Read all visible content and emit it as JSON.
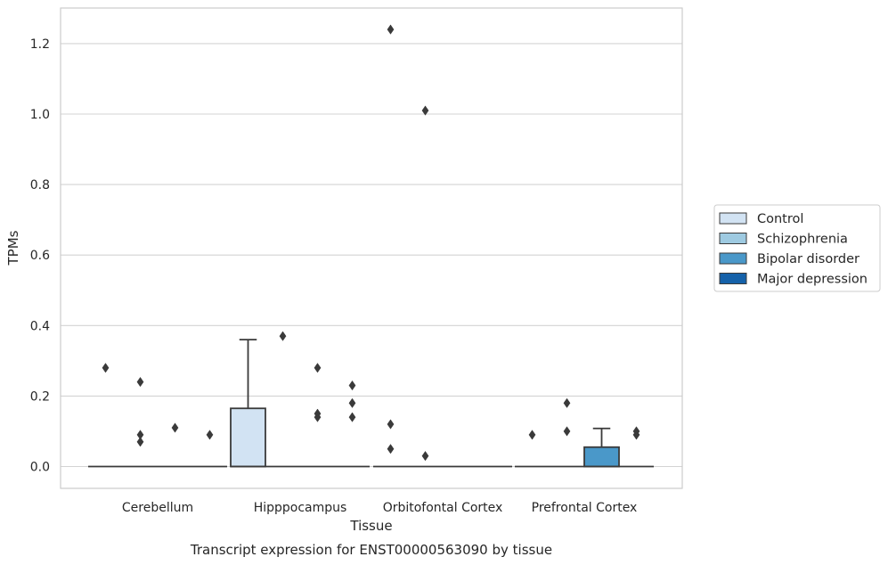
{
  "chart_data": {
    "type": "box",
    "xlabel": "Tissue",
    "ylabel": "TPMs",
    "caption": "Transcript expression for ENST00000563090 by tissue",
    "categories": [
      "Cerebellum",
      "Hipppocampus",
      "Orbitofontal Cortex",
      "Prefrontal Cortex"
    ],
    "ylim": [
      -0.06,
      1.3
    ],
    "yticks": [
      0.0,
      0.2,
      0.4,
      0.6,
      0.8,
      1.0,
      1.2
    ],
    "ytick_labels": [
      "0.0",
      "0.2",
      "0.4",
      "0.6",
      "0.8",
      "1.0",
      "1.2"
    ],
    "grid": true,
    "legend_position": "right",
    "series": [
      {
        "name": "Control",
        "color": "#d2e3f3"
      },
      {
        "name": "Schizophrenia",
        "color": "#9ecae1"
      },
      {
        "name": "Bipolar disorder",
        "color": "#4a98c9"
      },
      {
        "name": "Major depression",
        "color": "#1561a9"
      }
    ],
    "boxes": [
      {
        "category": "Cerebellum",
        "series": "Control",
        "q1": 0,
        "median": 0,
        "q3": 0,
        "whisker_low": 0,
        "whisker_high": 0,
        "outliers": [
          0.28
        ]
      },
      {
        "category": "Cerebellum",
        "series": "Schizophrenia",
        "q1": 0,
        "median": 0,
        "q3": 0,
        "whisker_low": 0,
        "whisker_high": 0,
        "outliers": [
          0.24,
          0.09,
          0.07
        ]
      },
      {
        "category": "Cerebellum",
        "series": "Bipolar disorder",
        "q1": 0,
        "median": 0,
        "q3": 0,
        "whisker_low": 0,
        "whisker_high": 0,
        "outliers": [
          0.11
        ]
      },
      {
        "category": "Cerebellum",
        "series": "Major depression",
        "q1": 0,
        "median": 0,
        "q3": 0,
        "whisker_low": 0,
        "whisker_high": 0,
        "outliers": [
          0.09
        ]
      },
      {
        "category": "Hipppocampus",
        "series": "Control",
        "q1": 0,
        "median": 0,
        "q3": 0.165,
        "whisker_low": 0,
        "whisker_high": 0.36,
        "outliers": []
      },
      {
        "category": "Hipppocampus",
        "series": "Schizophrenia",
        "q1": 0,
        "median": 0,
        "q3": 0,
        "whisker_low": 0,
        "whisker_high": 0,
        "outliers": [
          0.37
        ]
      },
      {
        "category": "Hipppocampus",
        "series": "Bipolar disorder",
        "q1": 0,
        "median": 0,
        "q3": 0,
        "whisker_low": 0,
        "whisker_high": 0,
        "outliers": [
          0.28,
          0.15,
          0.14
        ]
      },
      {
        "category": "Hipppocampus",
        "series": "Major depression",
        "q1": 0,
        "median": 0,
        "q3": 0,
        "whisker_low": 0,
        "whisker_high": 0,
        "outliers": [
          0.23,
          0.18,
          0.14
        ]
      },
      {
        "category": "Orbitofontal Cortex",
        "series": "Control",
        "q1": 0,
        "median": 0,
        "q3": 0,
        "whisker_low": 0,
        "whisker_high": 0,
        "outliers": [
          1.24,
          0.12,
          0.05
        ]
      },
      {
        "category": "Orbitofontal Cortex",
        "series": "Schizophrenia",
        "q1": 0,
        "median": 0,
        "q3": 0,
        "whisker_low": 0,
        "whisker_high": 0,
        "outliers": [
          1.01,
          0.03
        ]
      },
      {
        "category": "Orbitofontal Cortex",
        "series": "Bipolar disorder",
        "q1": 0,
        "median": 0,
        "q3": 0,
        "whisker_low": 0,
        "whisker_high": 0,
        "outliers": []
      },
      {
        "category": "Orbitofontal Cortex",
        "series": "Major depression",
        "q1": 0,
        "median": 0,
        "q3": 0,
        "whisker_low": 0,
        "whisker_high": 0,
        "outliers": []
      },
      {
        "category": "Prefrontal Cortex",
        "series": "Control",
        "q1": 0,
        "median": 0,
        "q3": 0,
        "whisker_low": 0,
        "whisker_high": 0,
        "outliers": [
          0.09
        ]
      },
      {
        "category": "Prefrontal Cortex",
        "series": "Schizophrenia",
        "q1": 0,
        "median": 0,
        "q3": 0,
        "whisker_low": 0,
        "whisker_high": 0,
        "outliers": [
          0.18,
          0.1
        ]
      },
      {
        "category": "Prefrontal Cortex",
        "series": "Bipolar disorder",
        "q1": 0,
        "median": 0,
        "q3": 0.055,
        "whisker_low": 0,
        "whisker_high": 0.108,
        "outliers": []
      },
      {
        "category": "Prefrontal Cortex",
        "series": "Major depression",
        "q1": 0,
        "median": 0,
        "q3": 0,
        "whisker_low": 0,
        "whisker_high": 0,
        "outliers": [
          0.1,
          0.09
        ]
      }
    ]
  }
}
